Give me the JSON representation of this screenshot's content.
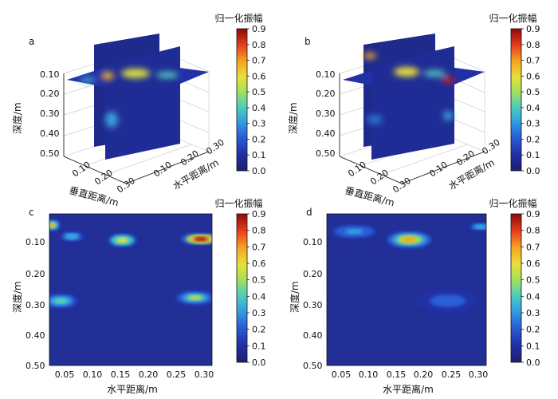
{
  "colorbar": {
    "title": "归一化振幅",
    "ticks": [
      "0.0",
      "0.1",
      "0.2",
      "0.3",
      "0.4",
      "0.5",
      "0.6",
      "0.7",
      "0.8",
      "0.9"
    ],
    "range": [
      0,
      0.9
    ],
    "colormap": [
      "#1b1f6e",
      "#2230a8",
      "#2a5fd6",
      "#33a6e0",
      "#55d0b4",
      "#a8e05a",
      "#e8e03a",
      "#f5a623",
      "#e8401c",
      "#8e0a0a"
    ]
  },
  "chart_data": [
    {
      "panel": "a",
      "type": "heatmap",
      "view": "3d-slices",
      "zlabel": "深度/m",
      "xlabel": "垂直距离/m",
      "ylabel": "水平距离/m",
      "zticks": [
        "0.10",
        "0.20",
        "0.30",
        "0.40",
        "0.50"
      ],
      "xticks": [
        "0.10",
        "0.20",
        "0.30"
      ],
      "yticks": [
        "0.10",
        "0.20",
        "0.30"
      ],
      "hotspots": [
        {
          "depth": 0.1,
          "amp": 0.55
        },
        {
          "depth": 0.32,
          "amp": 0.35
        }
      ]
    },
    {
      "panel": "b",
      "type": "heatmap",
      "view": "3d-slices",
      "zlabel": "深度/m",
      "xlabel": "垂直距离/m",
      "ylabel": "水平距离/m",
      "zticks": [
        "0.10",
        "0.20",
        "0.30",
        "0.40",
        "0.50"
      ],
      "xticks": [
        "0.10",
        "0.20",
        "0.30"
      ],
      "yticks": [
        "0.10",
        "0.20",
        "0.30"
      ],
      "hotspots": [
        {
          "depth": 0.1,
          "amp": 0.8
        },
        {
          "depth": 0.31,
          "amp": 0.4
        }
      ]
    },
    {
      "panel": "c",
      "type": "heatmap",
      "xlabel": "水平距离/m",
      "ylabel": "深度/m",
      "xlim": [
        0.02,
        0.31
      ],
      "ylim": [
        0.03,
        0.5
      ],
      "xticks": [
        "0.05",
        "0.10",
        "0.15",
        "0.20",
        "0.25",
        "0.30"
      ],
      "yticks": [
        "0.10",
        "0.20",
        "0.30",
        "0.40",
        "0.50"
      ],
      "hotspots": [
        {
          "x": 0.025,
          "depth": 0.065,
          "amp": 0.7,
          "sx": 0.012,
          "sy": 0.015
        },
        {
          "x": 0.06,
          "depth": 0.1,
          "amp": 0.35,
          "sx": 0.02,
          "sy": 0.015
        },
        {
          "x": 0.15,
          "depth": 0.112,
          "amp": 0.55,
          "sx": 0.025,
          "sy": 0.02
        },
        {
          "x": 0.29,
          "depth": 0.108,
          "amp": 0.9,
          "sx": 0.03,
          "sy": 0.016
        },
        {
          "x": 0.04,
          "depth": 0.3,
          "amp": 0.4,
          "sx": 0.03,
          "sy": 0.022
        },
        {
          "x": 0.28,
          "depth": 0.29,
          "amp": 0.45,
          "sx": 0.035,
          "sy": 0.022
        }
      ]
    },
    {
      "panel": "d",
      "type": "heatmap",
      "xlabel": "水平距离/m",
      "ylabel": "深度/m",
      "xlim": [
        0.02,
        0.31
      ],
      "ylim": [
        0.03,
        0.5
      ],
      "xticks": [
        "0.05",
        "0.10",
        "0.15",
        "0.20",
        "0.25",
        "0.30"
      ],
      "yticks": [
        "0.10",
        "0.20",
        "0.30",
        "0.40",
        "0.50"
      ],
      "hotspots": [
        {
          "x": 0.17,
          "depth": 0.11,
          "amp": 0.65,
          "sx": 0.035,
          "sy": 0.022
        },
        {
          "x": 0.07,
          "depth": 0.085,
          "amp": 0.3,
          "sx": 0.04,
          "sy": 0.02
        },
        {
          "x": 0.3,
          "depth": 0.07,
          "amp": 0.35,
          "sx": 0.02,
          "sy": 0.012
        },
        {
          "x": 0.24,
          "depth": 0.3,
          "amp": 0.22,
          "sx": 0.05,
          "sy": 0.03
        }
      ]
    }
  ]
}
